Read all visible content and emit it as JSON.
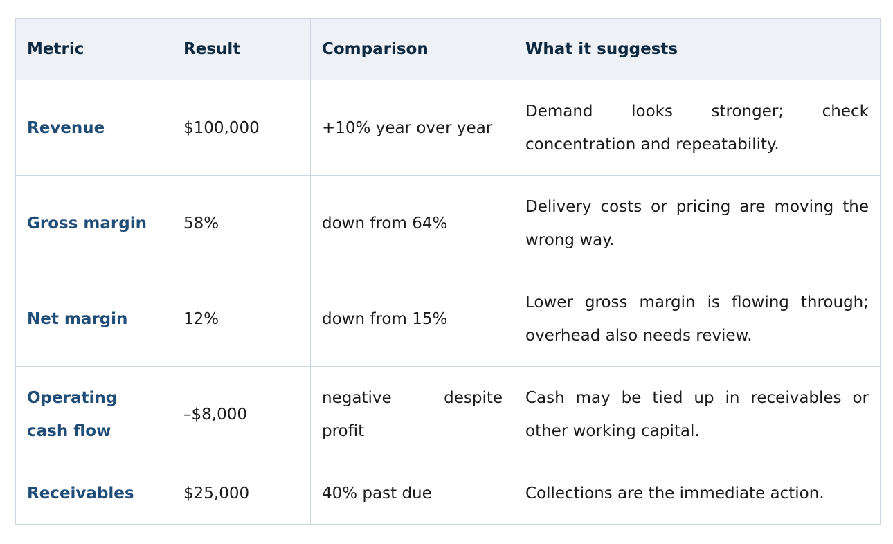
{
  "table": {
    "columns": [
      "Metric",
      "Result",
      "Comparison",
      "What it suggests"
    ],
    "rows": [
      [
        "Revenue",
        "$100,000",
        "+10% year over year",
        "Demand looks stronger; check concentration and repeatability."
      ],
      [
        "Gross margin",
        "58%",
        "down from 64%",
        "Delivery costs or pricing are moving the wrong way."
      ],
      [
        "Net margin",
        "12%",
        "down from 15%",
        "Lower gross margin is flowing through; overhead also needs review."
      ],
      [
        "Operating cash flow",
        "–$8,000",
        "negative despite profit",
        "Cash may be tied up in receivables or other working capital."
      ],
      [
        "Receivables",
        "$25,000",
        "40% past due",
        "Collections are the immediate action."
      ]
    ]
  }
}
